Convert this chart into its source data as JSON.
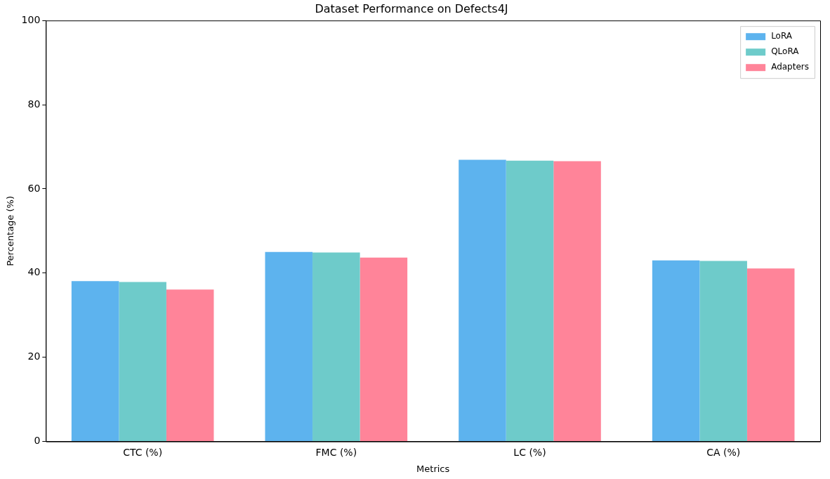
{
  "chart_data": {
    "type": "bar",
    "title": "Dataset Performance on Defects4J",
    "xlabel": "Metrics",
    "ylabel": "Percentage (%)",
    "categories": [
      "CTC (%)",
      "FMC (%)",
      "LC (%)",
      "CA (%)"
    ],
    "series": [
      {
        "name": "LoRA",
        "color": "#5db3ee",
        "values": [
          38.1,
          45.0,
          66.9,
          43.0
        ]
      },
      {
        "name": "QLoRA",
        "color": "#6ecbca",
        "values": [
          37.9,
          44.9,
          66.7,
          42.9
        ]
      },
      {
        "name": "Adapters",
        "color": "#ff8499",
        "values": [
          36.1,
          43.7,
          66.6,
          41.1
        ]
      }
    ],
    "ylim": [
      0,
      100
    ],
    "yticks": [
      0,
      20,
      40,
      60,
      80,
      100
    ],
    "grid": false,
    "legend": "top right"
  }
}
